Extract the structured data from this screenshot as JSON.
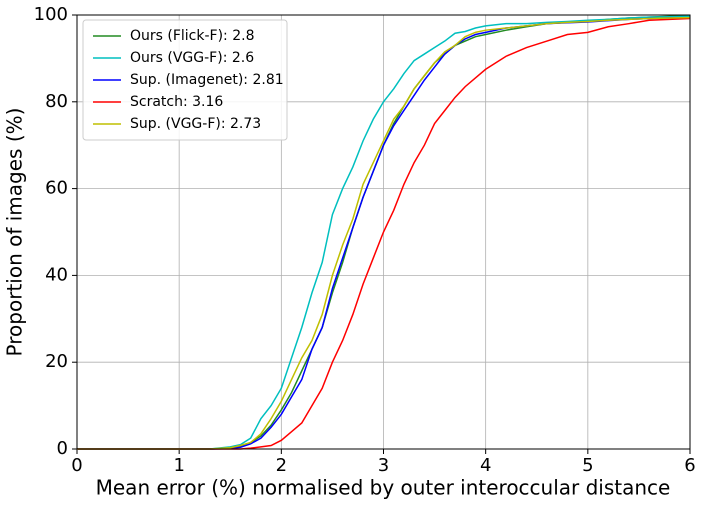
{
  "chart_data": {
    "type": "line",
    "xlabel": "Mean error (%) normalised by outer interoccular distance",
    "ylabel": "Proportion of images (%)",
    "x": [
      0,
      1.3,
      1.5,
      1.6,
      1.7,
      1.8,
      1.9,
      2.0,
      2.1,
      2.2,
      2.3,
      2.4,
      2.5,
      2.6,
      2.7,
      2.8,
      2.9,
      3.0,
      3.1,
      3.2,
      3.3,
      3.4,
      3.5,
      3.6,
      3.7,
      3.8,
      3.9,
      4.0,
      4.2,
      4.4,
      4.6,
      4.8,
      5.0,
      5.2,
      5.4,
      5.6,
      5.8,
      6.0
    ],
    "series": [
      {
        "name": "Ours (Flick-F): 2.8",
        "color": "#228b22",
        "values": [
          0,
          0,
          0.2,
          0.5,
          1.5,
          3,
          5.5,
          9,
          13,
          18,
          23,
          28,
          36,
          43,
          51,
          58,
          64,
          70,
          75,
          79,
          83,
          86,
          89,
          91,
          93,
          94,
          95,
          95.5,
          96.5,
          97.3,
          98,
          98.3,
          98.5,
          99,
          99.3,
          99.5,
          99.7,
          99.8
        ]
      },
      {
        "name": "Ours (VGG-F): 2.6",
        "color": "#00bfbf",
        "values": [
          0,
          0,
          0.5,
          1,
          2.5,
          7,
          10,
          14,
          21,
          28,
          36,
          43,
          54,
          60,
          65,
          71,
          76,
          80,
          83,
          86.5,
          89.5,
          91,
          92.5,
          94,
          95.8,
          96.2,
          97,
          97.5,
          98,
          98,
          98.3,
          98.5,
          98.8,
          99,
          99.3,
          99.5,
          99.6,
          99.7
        ]
      },
      {
        "name": "Sup. (Imagenet): 2.81",
        "color": "#0000ff",
        "values": [
          0,
          0,
          0.1,
          0.4,
          1.2,
          2.5,
          5,
          8,
          12,
          16,
          23,
          28,
          37,
          44,
          51,
          58,
          64,
          70,
          74.5,
          78,
          81.5,
          85,
          88,
          91,
          93,
          94.5,
          95.5,
          96,
          97,
          97.5,
          98,
          98.2,
          98.4,
          98.7,
          99,
          99.2,
          99.3,
          99.3
        ]
      },
      {
        "name": "Scratch: 3.16",
        "color": "#ff0000",
        "values": [
          0,
          0,
          0,
          0,
          0.2,
          0.5,
          0.8,
          2,
          4,
          6,
          10,
          14,
          20,
          25,
          31,
          38,
          44,
          50,
          55,
          61,
          66,
          70,
          75,
          78,
          81,
          83.5,
          85.5,
          87.5,
          90.5,
          92.5,
          94,
          95.5,
          96,
          97.3,
          98,
          98.8,
          99,
          99.2
        ]
      },
      {
        "name": "Sup. (VGG-F): 2.73",
        "color": "#bfbf00",
        "values": [
          0,
          0,
          0.3,
          0.8,
          1.5,
          3.5,
          7,
          11,
          16,
          21,
          25,
          31,
          40,
          47,
          53,
          61,
          66,
          71,
          76,
          79,
          83,
          86,
          89,
          91.5,
          93,
          95,
          96,
          96.5,
          97,
          97.5,
          98,
          98.3,
          98.5,
          98.8,
          99,
          99.2,
          99.3,
          99.4
        ]
      }
    ],
    "xlim": [
      0,
      6
    ],
    "xticks": [
      0,
      1,
      2,
      3,
      4,
      5,
      6
    ],
    "ylim": [
      0,
      100
    ],
    "yticks": [
      0,
      20,
      40,
      60,
      80,
      100
    ],
    "grid": true,
    "legend": "upper-left"
  }
}
